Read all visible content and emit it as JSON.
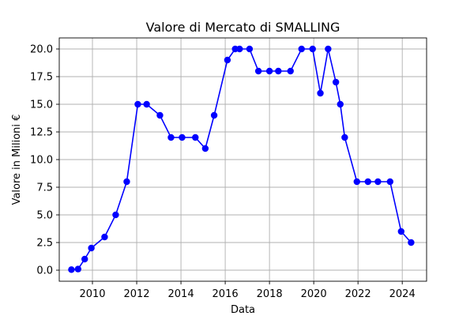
{
  "chart_data": {
    "type": "line",
    "title": "Valore di Mercato di SMALLING",
    "xlabel": "Data",
    "ylabel": "Valore in Milioni €",
    "xlim": [
      2008.5,
      2025.1
    ],
    "ylim": [
      -1.0,
      21.0
    ],
    "x_ticks": [
      2010,
      2012,
      2014,
      2016,
      2018,
      2020,
      2022,
      2024
    ],
    "x_tick_labels": [
      "2010",
      "2012",
      "2014",
      "2016",
      "2018",
      "2020",
      "2022",
      "2024"
    ],
    "y_ticks": [
      0,
      2.5,
      5,
      7.5,
      10,
      12.5,
      15,
      17.5,
      20
    ],
    "y_tick_labels": [
      "0.0",
      "2.5",
      "5.0",
      "7.5",
      "10.0",
      "12.5",
      "15.0",
      "17.5",
      "20.0"
    ],
    "grid": true,
    "color": "#0000ff",
    "marker": "circle",
    "series": [
      {
        "x": [
          2009.05,
          2009.35,
          2009.65,
          2009.95,
          2010.55,
          2011.05,
          2011.55,
          2012.05,
          2012.45,
          2013.05,
          2013.55,
          2014.05,
          2014.65,
          2015.1,
          2015.5,
          2016.1,
          2016.45,
          2016.65,
          2017.1,
          2017.5,
          2018.0,
          2018.4,
          2018.95,
          2019.45,
          2019.95,
          2020.3,
          2020.65,
          2021.0,
          2021.2,
          2021.4,
          2021.95,
          2022.45,
          2022.9,
          2023.45,
          2023.95,
          2024.4
        ],
        "y": [
          0.05,
          0.1,
          1.0,
          2.0,
          3.0,
          5.0,
          8.0,
          15.0,
          15.0,
          14.0,
          12.0,
          12.0,
          12.0,
          11.0,
          14.0,
          19.0,
          20.0,
          20.0,
          20.0,
          18.0,
          18.0,
          18.0,
          18.0,
          20.0,
          20.0,
          16.0,
          20.0,
          17.0,
          15.0,
          12.0,
          8.0,
          8.0,
          8.0,
          8.0,
          3.5,
          2.5
        ]
      }
    ]
  }
}
